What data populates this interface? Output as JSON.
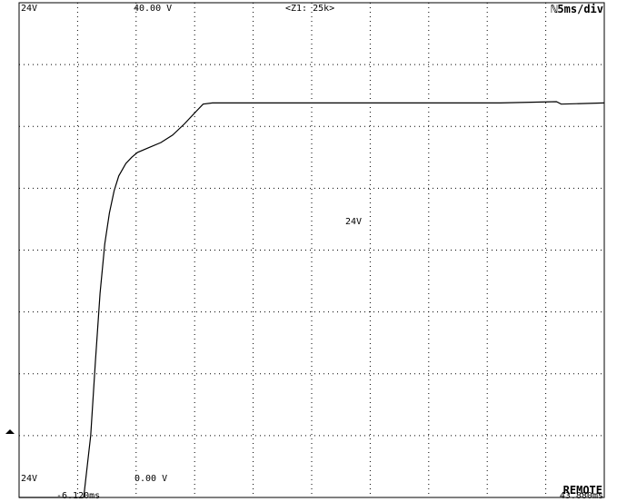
{
  "header": {
    "channel_top": "24V",
    "range_top": "40.00 V",
    "zoom": "<Z1: 25k>",
    "timebase": "ℕ5ms/div"
  },
  "footer": {
    "channel_bottom": "24V",
    "range_bottom": "0.00 V",
    "time_start": "-6.120ms",
    "time_end": "43.880ms",
    "remote": "REMOTE"
  },
  "trace_label": "24V",
  "chart_data": {
    "type": "line",
    "title": "",
    "xlabel": "",
    "ylabel": "",
    "x_unit": "ms",
    "y_unit": "V",
    "xlim": [
      -6.12,
      43.88
    ],
    "ylim": [
      0,
      40
    ],
    "x_divisions": 10,
    "y_divisions": 8,
    "grid": true,
    "series": [
      {
        "name": "24V",
        "x": [
          -6.12,
          -0.6,
          0.0,
          0.4,
          0.8,
          1.2,
          1.6,
          2.0,
          2.4,
          3.0,
          3.5,
          4.0,
          5.0,
          6.0,
          7.0,
          8.0,
          9.0,
          9.6,
          10.4,
          12.0,
          15.0,
          20.0,
          25.0,
          30.0,
          35.0,
          39.8,
          40.2,
          43.88
        ],
        "y": [
          0.0,
          0.0,
          5.0,
          11.0,
          16.5,
          20.5,
          23.0,
          24.8,
          26.0,
          27.0,
          27.5,
          27.9,
          28.3,
          28.7,
          29.3,
          30.2,
          31.2,
          31.8,
          31.9,
          31.9,
          31.9,
          31.9,
          31.9,
          31.9,
          31.9,
          32.0,
          31.8,
          31.9
        ]
      }
    ]
  }
}
